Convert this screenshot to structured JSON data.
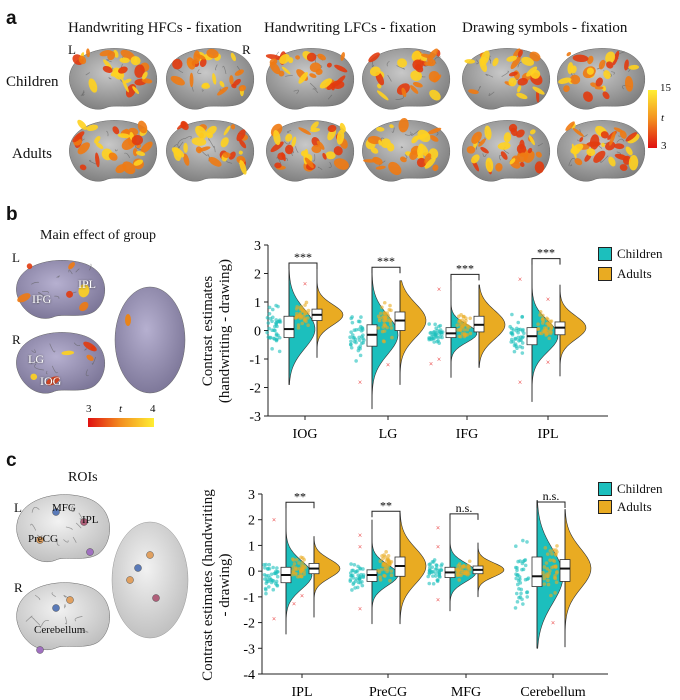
{
  "panel_a": {
    "label": "a",
    "column_titles": [
      "Handwriting HFCs - fixation",
      "Handwriting LFCs - fixation",
      "Drawing symbols - fixation"
    ],
    "hemisphere_left": "L",
    "hemisphere_right": "R",
    "row_labels": [
      "Children",
      "Adults"
    ],
    "colorbar": {
      "max": "15",
      "stat": "t",
      "min": "3"
    }
  },
  "panel_b": {
    "label": "b",
    "title": "Main effect of group",
    "hemisphere_left": "L",
    "hemisphere_right": "R",
    "region_labels": [
      "IFG",
      "IPL",
      "LG",
      "IOG"
    ],
    "colorbar": {
      "min": "3",
      "stat": "t",
      "max": "4"
    }
  },
  "panel_c": {
    "label": "c",
    "title": "ROIs",
    "hemisphere_left": "L",
    "hemisphere_right": "R",
    "region_labels": [
      "MFG",
      "IPL",
      "PreCG",
      "Cerebellum"
    ]
  },
  "colors": {
    "children": "#1cbfbd",
    "adults": "#e9ab22",
    "outlier": "#e83030"
  },
  "chart_data": [
    {
      "type": "violin",
      "ylabel": "Contrast estimates (handwriting - drawing)",
      "ylim": [
        -3,
        3
      ],
      "yticks": [
        -3,
        -2,
        -1,
        0,
        1,
        2,
        3
      ],
      "categories": [
        "IOG",
        "LG",
        "IFG",
        "IPL"
      ],
      "legend": [
        "Children",
        "Adults"
      ],
      "legend_position": "top-right",
      "significance": [
        "***",
        "***",
        "***",
        "***"
      ],
      "series": [
        {
          "name": "Children",
          "groups": [
            {
              "median": 0.05,
              "q1": -0.25,
              "q3": 0.5,
              "min": -1.9,
              "max": 2.3,
              "outliers": []
            },
            {
              "median": -0.15,
              "q1": -0.55,
              "q3": 0.2,
              "min": -2.75,
              "max": 2.15,
              "outliers": [
                -1.8
              ]
            },
            {
              "median": -0.1,
              "q1": -0.25,
              "q3": 0.1,
              "min": -1.65,
              "max": 1.9,
              "outliers": [
                1.45,
                -1.0,
                -1.15
              ]
            },
            {
              "median": -0.2,
              "q1": -0.5,
              "q3": 0.1,
              "min": -2.5,
              "max": 2.45,
              "outliers": [
                1.8,
                -1.8
              ]
            }
          ]
        },
        {
          "name": "Adults",
          "groups": [
            {
              "median": 0.55,
              "q1": 0.35,
              "q3": 0.75,
              "min": -0.95,
              "max": 2.2,
              "outliers": [
                1.65
              ]
            },
            {
              "median": 0.35,
              "q1": 0.0,
              "q3": 0.65,
              "min": -1.9,
              "max": 1.75,
              "outliers": [
                -1.2
              ]
            },
            {
              "median": 0.2,
              "q1": -0.05,
              "q3": 0.5,
              "min": -1.3,
              "max": 1.6,
              "outliers": []
            },
            {
              "median": 0.1,
              "q1": -0.15,
              "q3": 0.3,
              "min": -1.6,
              "max": 1.6,
              "outliers": [
                1.1,
                -1.1
              ]
            }
          ]
        }
      ]
    },
    {
      "type": "violin",
      "ylabel": "Contrast estimates (handwriting - drawing)",
      "ylim": [
        -4,
        3
      ],
      "yticks": [
        -4,
        -3,
        -2,
        -1,
        0,
        1,
        2,
        3
      ],
      "categories": [
        "IPL",
        "PreCG",
        "MFG",
        "Cerebellum"
      ],
      "legend": [
        "Children",
        "Adults"
      ],
      "legend_position": "top-right",
      "significance": [
        "**",
        "**",
        "n.s.",
        "n.s."
      ],
      "series": [
        {
          "name": "Children",
          "groups": [
            {
              "median": -0.15,
              "q1": -0.45,
              "q3": 0.15,
              "min": -2.45,
              "max": 2.6,
              "outliers": [
                2.0,
                -1.85
              ]
            },
            {
              "median": -0.15,
              "q1": -0.4,
              "q3": 0.05,
              "min": -2.05,
              "max": 2.0,
              "outliers": [
                1.4,
                0.95,
                -1.45
              ]
            },
            {
              "median": -0.05,
              "q1": -0.25,
              "q3": 0.15,
              "min": -1.55,
              "max": 2.15,
              "outliers": [
                1.7,
                0.95,
                -1.1
              ]
            },
            {
              "median": -0.2,
              "q1": -0.6,
              "q3": 0.55,
              "min": -3.0,
              "max": 2.75,
              "outliers": []
            }
          ]
        },
        {
          "name": "Adults",
          "groups": [
            {
              "median": 0.1,
              "q1": -0.1,
              "q3": 0.3,
              "min": -1.8,
              "max": 1.35,
              "outliers": [
                -0.95,
                -1.25
              ]
            },
            {
              "median": 0.2,
              "q1": -0.2,
              "q3": 0.55,
              "min": -2.05,
              "max": 2.25,
              "outliers": []
            },
            {
              "median": 0.05,
              "q1": -0.1,
              "q3": 0.2,
              "min": -1.0,
              "max": 1.1,
              "outliers": []
            },
            {
              "median": 0.1,
              "q1": -0.4,
              "q3": 0.45,
              "min": -2.95,
              "max": 2.4,
              "outliers": [
                -2.0
              ]
            }
          ]
        }
      ]
    }
  ]
}
